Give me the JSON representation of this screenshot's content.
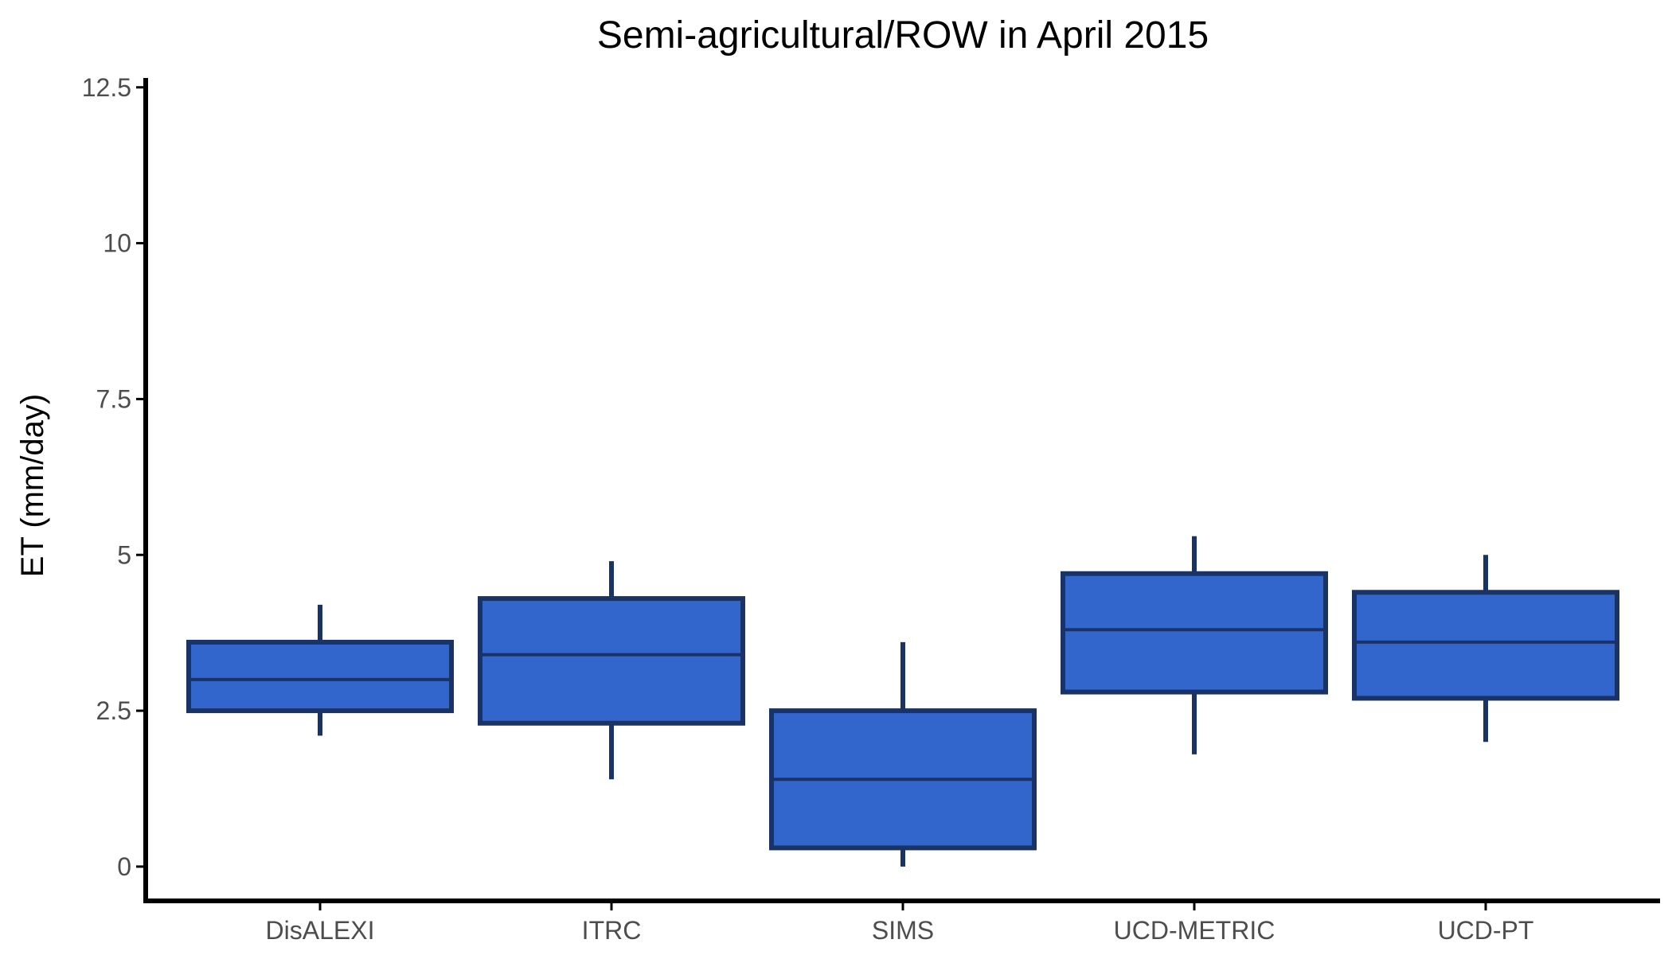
{
  "chart_data": {
    "type": "boxplot",
    "title": "Semi-agricultural/ROW in April 2015",
    "xlabel": "",
    "ylabel": "ET (mm/day)",
    "ylim": [
      -0.55,
      12.65
    ],
    "y_ticks": [
      0,
      2.5,
      5,
      7.5,
      10,
      12.5
    ],
    "y_tick_labels": [
      "0",
      "2.5",
      "5",
      "7.5",
      "10",
      "12.5"
    ],
    "grid": false,
    "legend": "none",
    "colors": {
      "box_fill": "#3366cc",
      "box_stroke": "#1a3366"
    },
    "categories": [
      "DisALEXI",
      "ITRC",
      "SIMS",
      "UCD-METRIC",
      "UCD-PT"
    ],
    "boxes": [
      {
        "category": "DisALEXI",
        "whisker_low": 2.1,
        "q1": 2.5,
        "median": 3.0,
        "q3": 3.6,
        "whisker_high": 4.2
      },
      {
        "category": "ITRC",
        "whisker_low": 1.4,
        "q1": 2.3,
        "median": 3.4,
        "q3": 4.3,
        "whisker_high": 4.9
      },
      {
        "category": "SIMS",
        "whisker_low": 0.0,
        "q1": 0.3,
        "median": 1.4,
        "q3": 2.5,
        "whisker_high": 3.6
      },
      {
        "category": "UCD-METRIC",
        "whisker_low": 1.8,
        "q1": 2.8,
        "median": 3.8,
        "q3": 4.7,
        "whisker_high": 5.3
      },
      {
        "category": "UCD-PT",
        "whisker_low": 2.0,
        "q1": 2.7,
        "median": 3.6,
        "q3": 4.4,
        "whisker_high": 5.0
      }
    ]
  }
}
